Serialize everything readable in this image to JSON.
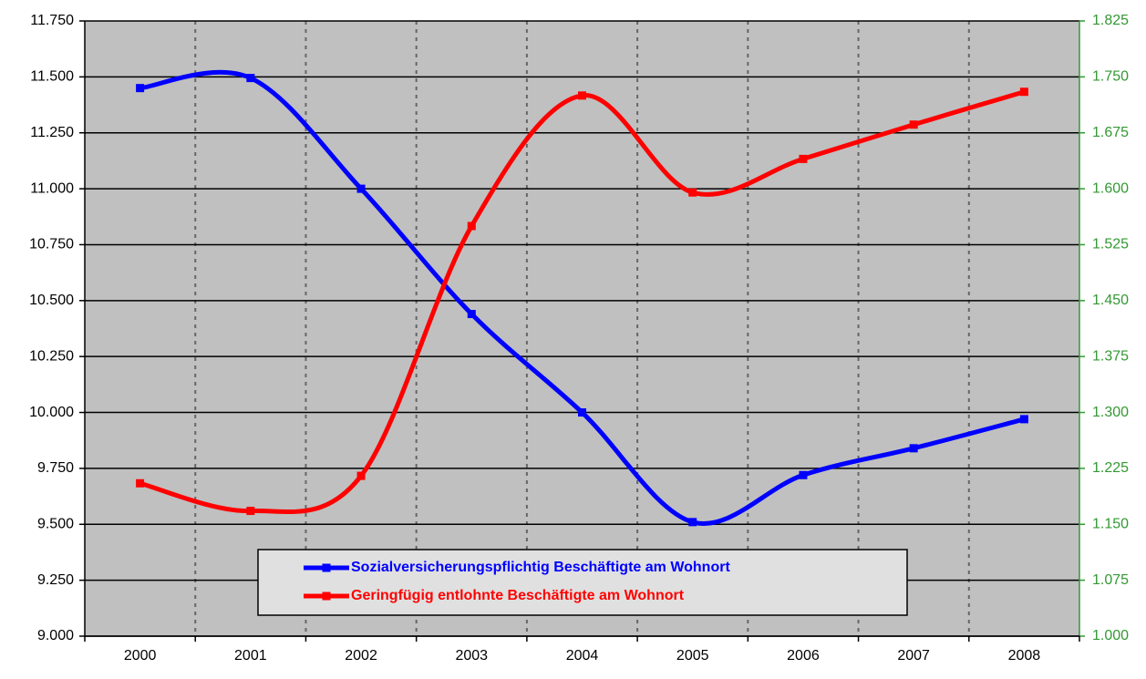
{
  "chart_data": {
    "type": "line",
    "categories": [
      "2000",
      "2001",
      "2002",
      "2003",
      "2004",
      "2005",
      "2006",
      "2007",
      "2008"
    ],
    "series": [
      {
        "name": "Sozialversicherungspflichtig Beschäftigte am Wohnort",
        "color": "#0000ff",
        "axis": "y",
        "values": [
          11450,
          11495,
          11000,
          10440,
          10000,
          9510,
          9720,
          9840,
          9970
        ]
      },
      {
        "name": "Geringfügig entlohnte Beschäftigte am Wohnort",
        "color": "#ff0000",
        "axis": "y2",
        "values": [
          1205,
          1168,
          1215,
          1550,
          1725,
          1595,
          1640,
          1686,
          1730
        ]
      }
    ],
    "ylim": [
      9000,
      11750
    ],
    "yticks": [
      {
        "value": 9000,
        "label": "9.000"
      },
      {
        "value": 9250,
        "label": "9.250"
      },
      {
        "value": 9500,
        "label": "9.500"
      },
      {
        "value": 9750,
        "label": "9.750"
      },
      {
        "value": 10000,
        "label": "10.000"
      },
      {
        "value": 10250,
        "label": "10.250"
      },
      {
        "value": 10500,
        "label": "10.500"
      },
      {
        "value": 10750,
        "label": "10.750"
      },
      {
        "value": 11000,
        "label": "11.000"
      },
      {
        "value": 11250,
        "label": "11.250"
      },
      {
        "value": 11500,
        "label": "11.500"
      },
      {
        "value": 11750,
        "label": "11.750"
      }
    ],
    "y2lim": [
      1000,
      1825
    ],
    "y2ticks": [
      {
        "value": 1000,
        "label": "1.000"
      },
      {
        "value": 1075,
        "label": "1.075"
      },
      {
        "value": 1150,
        "label": "1.150"
      },
      {
        "value": 1225,
        "label": "1.225"
      },
      {
        "value": 1300,
        "label": "1.300"
      },
      {
        "value": 1375,
        "label": "1.375"
      },
      {
        "value": 1450,
        "label": "1.450"
      },
      {
        "value": 1525,
        "label": "1.525"
      },
      {
        "value": 1600,
        "label": "1.600"
      },
      {
        "value": 1675,
        "label": "1.675"
      },
      {
        "value": 1750,
        "label": "1.750"
      },
      {
        "value": 1825,
        "label": "1.825"
      }
    ],
    "y2color": "#339933",
    "grid": true,
    "legend": "bottom"
  }
}
